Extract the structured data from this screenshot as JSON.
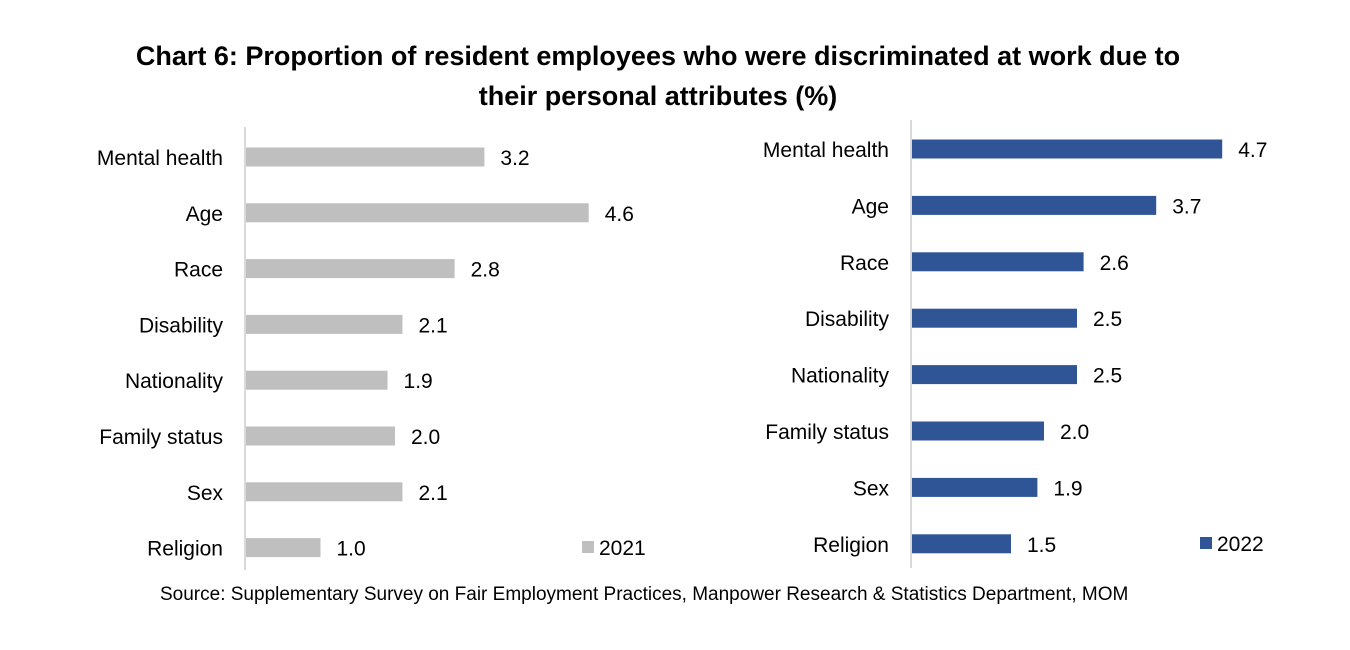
{
  "title_line1": "Chart 6: Proportion of resident employees who were discriminated at work due to",
  "title_line2": "their personal attributes (%)",
  "source": "Source: Supplementary Survey on Fair Employment Practices, Manpower Research & Statistics Department, MOM",
  "chart_data": [
    {
      "type": "bar",
      "orientation": "horizontal",
      "categories": [
        "Mental health",
        "Age",
        "Race",
        "Disability",
        "Nationality",
        "Family status",
        "Sex",
        "Religion"
      ],
      "series": [
        {
          "name": "2021",
          "values": [
            3.2,
            4.6,
            2.8,
            2.1,
            1.9,
            2.0,
            2.1,
            1.0
          ],
          "color": "#bfbfbf"
        }
      ],
      "legend_position": "bottom-right",
      "data_labels": true
    },
    {
      "type": "bar",
      "orientation": "horizontal",
      "categories": [
        "Mental health",
        "Age",
        "Race",
        "Disability",
        "Nationality",
        "Family status",
        "Sex",
        "Religion"
      ],
      "series": [
        {
          "name": "2022",
          "values": [
            4.7,
            3.7,
            2.6,
            2.5,
            2.5,
            2.0,
            1.9,
            1.5
          ],
          "color": "#2f5597"
        }
      ],
      "legend_position": "bottom-right",
      "data_labels": true
    }
  ]
}
